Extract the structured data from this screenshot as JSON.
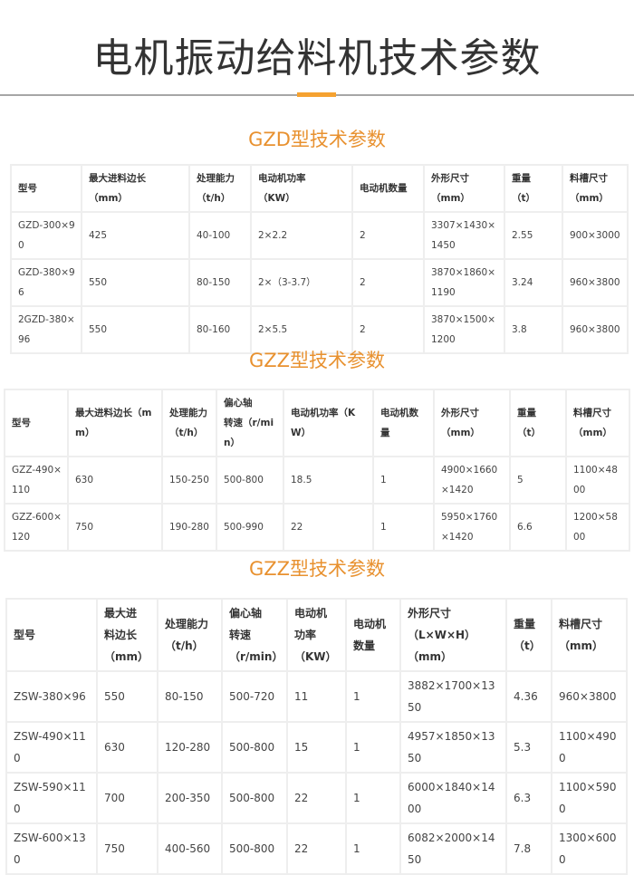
{
  "page": {
    "title": "电机振动给料机技术参数",
    "accent_color": "#f5a230",
    "section_color": "#e8912f"
  },
  "tables": [
    {
      "title": "GZD型技术参数",
      "headers": [
        "型号",
        "最大进料边长\n（mm）",
        "处理能力\n（t/h）",
        "电动机功率\n（KW）",
        "电动机数量",
        "外形尺寸\n（mm）",
        "重量\n（t）",
        "料槽尺寸\n（mm）"
      ],
      "rows": [
        [
          "GZD-300×90",
          "425",
          "40-100",
          "2×2.2",
          "2",
          "3307×1430×1450",
          "2.55",
          "900×3000"
        ],
        [
          "GZD-380×96",
          "550",
          "80-150",
          "2×（3-3.7）",
          "2",
          "3870×1860×1190",
          "3.24",
          "960×3800"
        ],
        [
          "2GZD-380×96",
          "550",
          "80-160",
          "2×5.5",
          "2",
          "3870×1500×1200",
          "3.8",
          "960×3800"
        ]
      ]
    },
    {
      "title": "GZZ型技术参数",
      "headers": [
        "型号",
        "最大进料边长（mm）",
        "处理能力\n（t/h）",
        "偏心轴\n转速（r/min）",
        "电动机功率（KW）",
        "电动机数量",
        "外形尺寸\n（mm）",
        "重量\n（t）",
        "料槽尺寸\n（mm）"
      ],
      "rows": [
        [
          "GZZ-490×110",
          "630",
          "150-250",
          "500-800",
          "18.5",
          "1",
          "4900×1660×1420",
          "5",
          "1100×4800"
        ],
        [
          "GZZ-600×120",
          "750",
          "190-280",
          "500-990",
          "22",
          "1",
          "5950×1760×1420",
          "6.6",
          "1200×5800"
        ]
      ]
    },
    {
      "title": "GZZ型技术参数",
      "headers": [
        "型号",
        "最大进\n料边长\n（mm）",
        "处理能力\n（t/h）",
        "偏心轴\n转速\n（r/min）",
        "电动机\n功率\n（KW）",
        "电动机\n数量",
        "外形尺寸\n（L×W×H）\n（mm）",
        "重量\n（t）",
        "料槽尺寸\n（mm）"
      ],
      "rows": [
        [
          "ZSW-380×96",
          "550",
          "80-150",
          "500-720",
          "11",
          "1",
          "3882×1700×1350",
          "4.36",
          "960×3800"
        ],
        [
          "ZSW-490×110",
          "630",
          "120-280",
          "500-800",
          "15",
          "1",
          "4957×1850×1350",
          "5.3",
          "1100×4900"
        ],
        [
          "ZSW-590×110",
          "700",
          "200-350",
          "500-800",
          "22",
          "1",
          "6000×1840×1400",
          "6.3",
          "1100×5900"
        ],
        [
          "ZSW-600×130",
          "750",
          "400-560",
          "500-800",
          "22",
          "1",
          "6082×2000×1450",
          "7.8",
          "1300×6000"
        ]
      ]
    }
  ]
}
